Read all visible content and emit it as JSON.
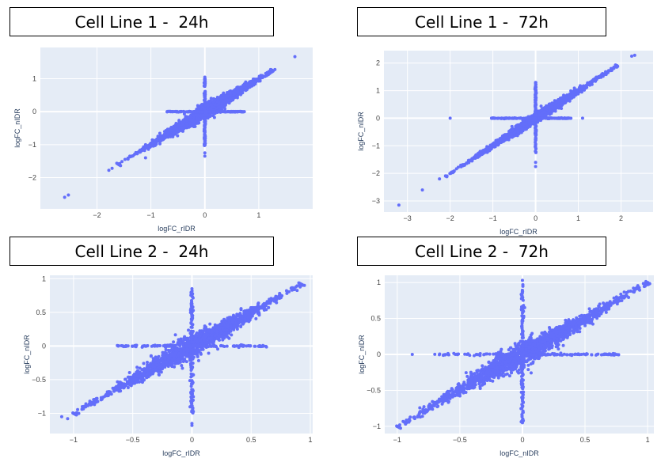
{
  "colors": {
    "plot_bg": "#e5ecf6",
    "grid": "#ffffff",
    "marker": "#636efa"
  },
  "chart_data": [
    {
      "type": "scatter",
      "title": "Cell Line 1 -  24h",
      "xlabel": "logFC_rIDR",
      "ylabel": "logFC_nIDR",
      "xlim": [
        -3.05,
        2.0
      ],
      "ylim": [
        -2.95,
        1.95
      ],
      "xticks": [
        -2,
        -1,
        0,
        1
      ],
      "xticklabels": [
        "−2",
        "−1",
        "0",
        "1"
      ],
      "yticks": [
        -2,
        -1,
        0,
        1
      ],
      "yticklabels": [
        "−2",
        "−1",
        "0",
        "1"
      ],
      "grid": true,
      "outliers": {
        "x": [
          1.67,
          -2.6,
          -2.53,
          -1.78,
          -1.72,
          -1.48,
          -1.1,
          0.0,
          0.0,
          0.0,
          1.22,
          1.3
        ],
        "y": [
          1.67,
          -2.6,
          -2.53,
          -1.78,
          -1.72,
          -1.45,
          -1.4,
          -1.25,
          -1.35,
          1.05,
          1.22,
          1.28
        ]
      },
      "distribution": {
        "diag_range": [
          -1.6,
          1.25
        ],
        "diag_sd": 0.08,
        "hline_x_range": [
          -0.7,
          0.75
        ],
        "vline_y_range": [
          -1.05,
          1.0
        ]
      }
    },
    {
      "type": "scatter",
      "title": "Cell Line 1 -  72h",
      "xlabel": "logFC_rIDR",
      "ylabel": "logFC_nIDR",
      "xlim": [
        -3.55,
        2.75
      ],
      "ylim": [
        -3.4,
        2.45
      ],
      "xticks": [
        -3,
        -2,
        -1,
        0,
        1,
        2
      ],
      "xticklabels": [
        "−3",
        "−2",
        "−1",
        "0",
        "1",
        "2"
      ],
      "yticks": [
        -3,
        -2,
        -1,
        0,
        1,
        2
      ],
      "yticklabels": [
        "−3",
        "−2",
        "−1",
        "0",
        "1",
        "2"
      ],
      "grid": true,
      "outliers": {
        "x": [
          -3.2,
          -2.65,
          -2.25,
          -2.0,
          0.0,
          0.0,
          0.0,
          1.1,
          2.25,
          2.32,
          1.9
        ],
        "y": [
          -3.15,
          -2.6,
          -2.2,
          0.0,
          -1.6,
          -1.75,
          1.25,
          0.0,
          2.25,
          2.28,
          1.85
        ]
      },
      "distribution": {
        "diag_range": [
          -2.1,
          1.9
        ],
        "diag_sd": 0.07,
        "hline_x_range": [
          -1.05,
          0.85
        ],
        "vline_y_range": [
          -1.3,
          1.3
        ]
      }
    },
    {
      "type": "scatter",
      "title": "Cell Line 2 -  24h",
      "xlabel": "logFC_rIDR",
      "ylabel": "logFC_nIDR",
      "xlim": [
        -1.2,
        1.02
      ],
      "ylim": [
        -1.3,
        1.05
      ],
      "xticks": [
        -1,
        -0.5,
        0,
        0.5,
        1
      ],
      "xticklabels": [
        "−1",
        "−0.5",
        "0",
        "0.5",
        "1"
      ],
      "yticks": [
        -1,
        -0.5,
        0,
        0.5,
        1
      ],
      "yticklabels": [
        "−1",
        "−0.5",
        "0",
        "0.5",
        "1"
      ],
      "grid": true,
      "outliers": {
        "x": [
          -1.1,
          -1.05,
          -0.98,
          0.92,
          0.95,
          0.0,
          0.0,
          0.0
        ],
        "y": [
          -1.05,
          -1.08,
          -1.02,
          0.9,
          0.9,
          -1.15,
          -1.18,
          0.85
        ]
      },
      "distribution": {
        "diag_range": [
          -1.0,
          0.92
        ],
        "diag_sd": 0.065,
        "hline_x_range": [
          -0.65,
          0.63
        ],
        "vline_y_range": [
          -1.0,
          0.82
        ]
      }
    },
    {
      "type": "scatter",
      "title": "Cell Line 2 -  72h",
      "xlabel": "logFC_nIDR",
      "ylabel": "logFC_nIDR",
      "xlim": [
        -1.1,
        1.05
      ],
      "ylim": [
        -1.1,
        1.1
      ],
      "xticks": [
        -1,
        -0.5,
        0,
        0.5,
        1
      ],
      "xticklabels": [
        "−1",
        "−0.5",
        "0",
        "0.5",
        "1"
      ],
      "yticks": [
        -1,
        -0.5,
        0,
        0.5,
        1
      ],
      "yticklabels": [
        "−1",
        "−0.5",
        "0",
        "0.5",
        "1"
      ],
      "grid": true,
      "outliers": {
        "x": [
          -1.0,
          -0.98,
          -0.9,
          0.98,
          1.0,
          -0.88,
          0.0,
          0.0
        ],
        "y": [
          -1.0,
          -0.98,
          -0.92,
          0.95,
          0.97,
          0.0,
          1.03,
          -0.95
        ]
      },
      "distribution": {
        "diag_range": [
          -1.0,
          1.0
        ],
        "diag_sd": 0.07,
        "hline_x_range": [
          -0.7,
          0.78
        ],
        "vline_y_range": [
          -0.95,
          0.97
        ]
      }
    }
  ]
}
